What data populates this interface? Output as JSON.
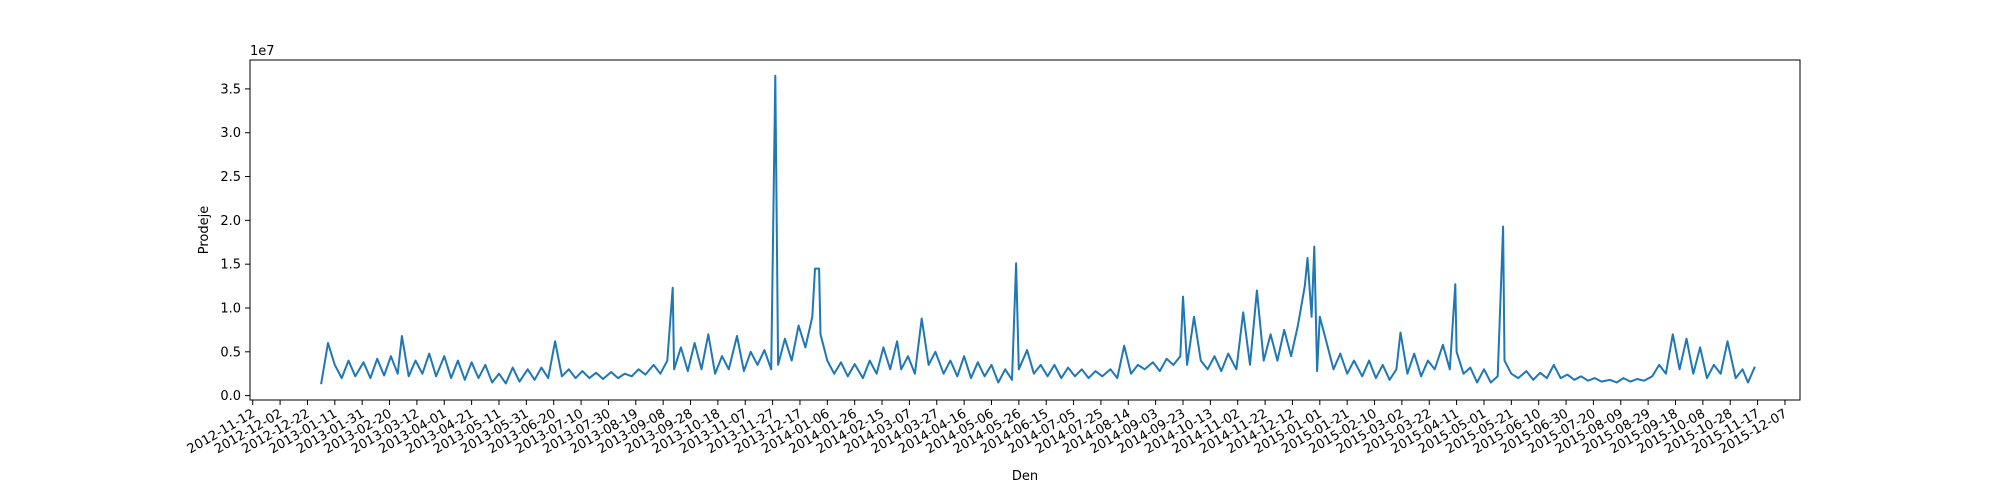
{
  "chart_data": {
    "type": "line",
    "xlabel": "Den",
    "ylabel": "Prodeje",
    "offset_label": "1e7",
    "color": "#1f77b4",
    "x": [
      "2013-01-01",
      "2013-01-06",
      "2013-01-11",
      "2013-01-16",
      "2013-01-21",
      "2013-01-26",
      "2013-02-01",
      "2013-02-06",
      "2013-02-11",
      "2013-02-16",
      "2013-02-21",
      "2013-02-26",
      "2013-03-01",
      "2013-03-06",
      "2013-03-11",
      "2013-03-16",
      "2013-03-21",
      "2013-03-26",
      "2013-04-01",
      "2013-04-06",
      "2013-04-11",
      "2013-04-16",
      "2013-04-21",
      "2013-04-26",
      "2013-05-01",
      "2013-05-06",
      "2013-05-11",
      "2013-05-16",
      "2013-05-21",
      "2013-05-26",
      "2013-06-01",
      "2013-06-06",
      "2013-06-11",
      "2013-06-16",
      "2013-06-21",
      "2013-06-26",
      "2013-07-01",
      "2013-07-06",
      "2013-07-11",
      "2013-07-16",
      "2013-07-21",
      "2013-07-26",
      "2013-08-01",
      "2013-08-06",
      "2013-08-11",
      "2013-08-16",
      "2013-08-21",
      "2013-08-26",
      "2013-09-01",
      "2013-09-06",
      "2013-09-11",
      "2013-09-15",
      "2013-09-16",
      "2013-09-21",
      "2013-09-26",
      "2013-10-01",
      "2013-10-06",
      "2013-10-11",
      "2013-10-16",
      "2013-10-21",
      "2013-10-26",
      "2013-11-01",
      "2013-11-06",
      "2013-11-11",
      "2013-11-16",
      "2013-11-21",
      "2013-11-26",
      "2013-11-29",
      "2013-12-01",
      "2013-12-06",
      "2013-12-11",
      "2013-12-16",
      "2013-12-21",
      "2013-12-26",
      "2013-12-28",
      "2013-12-31",
      "2014-01-01",
      "2014-01-06",
      "2014-01-11",
      "2014-01-16",
      "2014-01-21",
      "2014-01-26",
      "2014-02-01",
      "2014-02-06",
      "2014-02-11",
      "2014-02-16",
      "2014-02-21",
      "2014-02-26",
      "2014-03-01",
      "2014-03-06",
      "2014-03-11",
      "2014-03-16",
      "2014-03-21",
      "2014-03-26",
      "2014-04-01",
      "2014-04-06",
      "2014-04-11",
      "2014-04-16",
      "2014-04-21",
      "2014-04-26",
      "2014-05-01",
      "2014-05-06",
      "2014-05-11",
      "2014-05-16",
      "2014-05-21",
      "2014-05-24",
      "2014-05-26",
      "2014-06-01",
      "2014-06-06",
      "2014-06-11",
      "2014-06-16",
      "2014-06-21",
      "2014-06-26",
      "2014-07-01",
      "2014-07-06",
      "2014-07-11",
      "2014-07-16",
      "2014-07-21",
      "2014-07-26",
      "2014-08-01",
      "2014-08-06",
      "2014-08-11",
      "2014-08-16",
      "2014-08-21",
      "2014-08-26",
      "2014-09-01",
      "2014-09-06",
      "2014-09-11",
      "2014-09-16",
      "2014-09-21",
      "2014-09-23",
      "2014-09-26",
      "2014-10-01",
      "2014-10-06",
      "2014-10-11",
      "2014-10-16",
      "2014-10-21",
      "2014-10-26",
      "2014-11-01",
      "2014-11-06",
      "2014-11-11",
      "2014-11-16",
      "2014-11-21",
      "2014-11-26",
      "2014-12-01",
      "2014-12-06",
      "2014-12-11",
      "2014-12-16",
      "2014-12-21",
      "2014-12-23",
      "2014-12-26",
      "2014-12-28",
      "2014-12-30",
      "2015-01-01",
      "2015-01-06",
      "2015-01-11",
      "2015-01-16",
      "2015-01-21",
      "2015-01-26",
      "2015-02-01",
      "2015-02-06",
      "2015-02-11",
      "2015-02-16",
      "2015-02-21",
      "2015-02-26",
      "2015-03-01",
      "2015-03-06",
      "2015-03-11",
      "2015-03-16",
      "2015-03-21",
      "2015-03-26",
      "2015-04-01",
      "2015-04-06",
      "2015-04-10",
      "2015-04-11",
      "2015-04-16",
      "2015-04-21",
      "2015-04-26",
      "2015-05-01",
      "2015-05-06",
      "2015-05-11",
      "2015-05-15",
      "2015-05-16",
      "2015-05-21",
      "2015-05-26",
      "2015-06-01",
      "2015-06-06",
      "2015-06-11",
      "2015-06-16",
      "2015-06-21",
      "2015-06-26",
      "2015-07-01",
      "2015-07-06",
      "2015-07-11",
      "2015-07-16",
      "2015-07-21",
      "2015-07-26",
      "2015-08-01",
      "2015-08-06",
      "2015-08-11",
      "2015-08-16",
      "2015-08-21",
      "2015-08-26",
      "2015-09-01",
      "2015-09-06",
      "2015-09-11",
      "2015-09-16",
      "2015-09-21",
      "2015-09-26",
      "2015-10-01",
      "2015-10-06",
      "2015-10-11",
      "2015-10-16",
      "2015-10-21",
      "2015-10-26",
      "2015-11-01",
      "2015-11-06",
      "2015-11-10",
      "2015-11-15"
    ],
    "values": [
      0.13,
      0.6,
      0.35,
      0.2,
      0.4,
      0.22,
      0.38,
      0.2,
      0.42,
      0.23,
      0.45,
      0.25,
      0.68,
      0.22,
      0.4,
      0.25,
      0.48,
      0.22,
      0.45,
      0.2,
      0.4,
      0.18,
      0.38,
      0.2,
      0.35,
      0.15,
      0.25,
      0.14,
      0.32,
      0.16,
      0.3,
      0.18,
      0.32,
      0.2,
      0.62,
      0.22,
      0.3,
      0.2,
      0.28,
      0.2,
      0.26,
      0.19,
      0.27,
      0.2,
      0.25,
      0.22,
      0.3,
      0.24,
      0.35,
      0.25,
      0.4,
      1.23,
      0.3,
      0.55,
      0.28,
      0.6,
      0.3,
      0.7,
      0.25,
      0.45,
      0.3,
      0.68,
      0.28,
      0.5,
      0.35,
      0.52,
      0.3,
      3.65,
      0.35,
      0.65,
      0.4,
      0.8,
      0.55,
      0.9,
      1.45,
      1.45,
      0.7,
      0.4,
      0.25,
      0.38,
      0.22,
      0.36,
      0.2,
      0.4,
      0.25,
      0.55,
      0.3,
      0.62,
      0.3,
      0.45,
      0.25,
      0.88,
      0.35,
      0.5,
      0.25,
      0.4,
      0.22,
      0.45,
      0.2,
      0.38,
      0.22,
      0.35,
      0.15,
      0.3,
      0.18,
      1.51,
      0.3,
      0.52,
      0.25,
      0.35,
      0.22,
      0.35,
      0.2,
      0.32,
      0.22,
      0.3,
      0.2,
      0.28,
      0.22,
      0.3,
      0.2,
      0.57,
      0.25,
      0.35,
      0.3,
      0.38,
      0.28,
      0.42,
      0.35,
      0.45,
      1.13,
      0.35,
      0.9,
      0.4,
      0.3,
      0.45,
      0.28,
      0.48,
      0.3,
      0.95,
      0.35,
      1.2,
      0.4,
      0.7,
      0.4,
      0.75,
      0.45,
      0.8,
      1.25,
      1.57,
      0.9,
      1.7,
      0.28,
      0.9,
      0.6,
      0.3,
      0.48,
      0.25,
      0.4,
      0.22,
      0.4,
      0.2,
      0.35,
      0.18,
      0.3,
      0.72,
      0.25,
      0.48,
      0.22,
      0.4,
      0.3,
      0.58,
      0.3,
      1.27,
      0.5,
      0.25,
      0.32,
      0.15,
      0.3,
      0.15,
      0.22,
      1.93,
      0.4,
      0.25,
      0.2,
      0.28,
      0.18,
      0.26,
      0.2,
      0.35,
      0.2,
      0.24,
      0.18,
      0.22,
      0.17,
      0.2,
      0.16,
      0.18,
      0.15,
      0.2,
      0.16,
      0.19,
      0.17,
      0.22,
      0.35,
      0.25,
      0.7,
      0.3,
      0.65,
      0.25,
      0.55,
      0.2,
      0.35,
      0.25,
      0.62,
      0.2,
      0.3,
      0.15,
      0.33
    ],
    "xlim": [
      "2012-11-10",
      "2015-12-18"
    ],
    "xticks": [
      "2012-11-12",
      "2012-12-02",
      "2012-12-22",
      "2013-01-11",
      "2013-01-31",
      "2013-02-20",
      "2013-03-12",
      "2013-04-01",
      "2013-04-21",
      "2013-05-11",
      "2013-05-31",
      "2013-06-20",
      "2013-07-10",
      "2013-07-30",
      "2013-08-19",
      "2013-09-08",
      "2013-09-28",
      "2013-10-18",
      "2013-11-07",
      "2013-11-27",
      "2013-12-17",
      "2014-01-06",
      "2014-01-26",
      "2014-02-15",
      "2014-03-07",
      "2014-03-27",
      "2014-04-16",
      "2014-05-06",
      "2014-05-26",
      "2014-06-15",
      "2014-07-05",
      "2014-07-25",
      "2014-08-14",
      "2014-09-03",
      "2014-09-23",
      "2014-10-13",
      "2014-11-02",
      "2014-11-22",
      "2014-12-12",
      "2015-01-01",
      "2015-01-21",
      "2015-02-10",
      "2015-03-02",
      "2015-03-22",
      "2015-04-11",
      "2015-05-01",
      "2015-05-21",
      "2015-06-10",
      "2015-06-30",
      "2015-07-20",
      "2015-08-09",
      "2015-08-29",
      "2015-09-18",
      "2015-10-08",
      "2015-10-28",
      "2015-11-17",
      "2015-12-07"
    ],
    "ylim": [
      -0.05,
      3.83
    ],
    "yticks": [
      {
        "value": 0,
        "label": "0.0"
      },
      0.5,
      {
        "value": 1,
        "label": "1.0"
      },
      1.5,
      {
        "value": 2,
        "label": "2.0"
      },
      2.5,
      {
        "value": 3,
        "label": "3.0"
      },
      3.5
    ]
  }
}
